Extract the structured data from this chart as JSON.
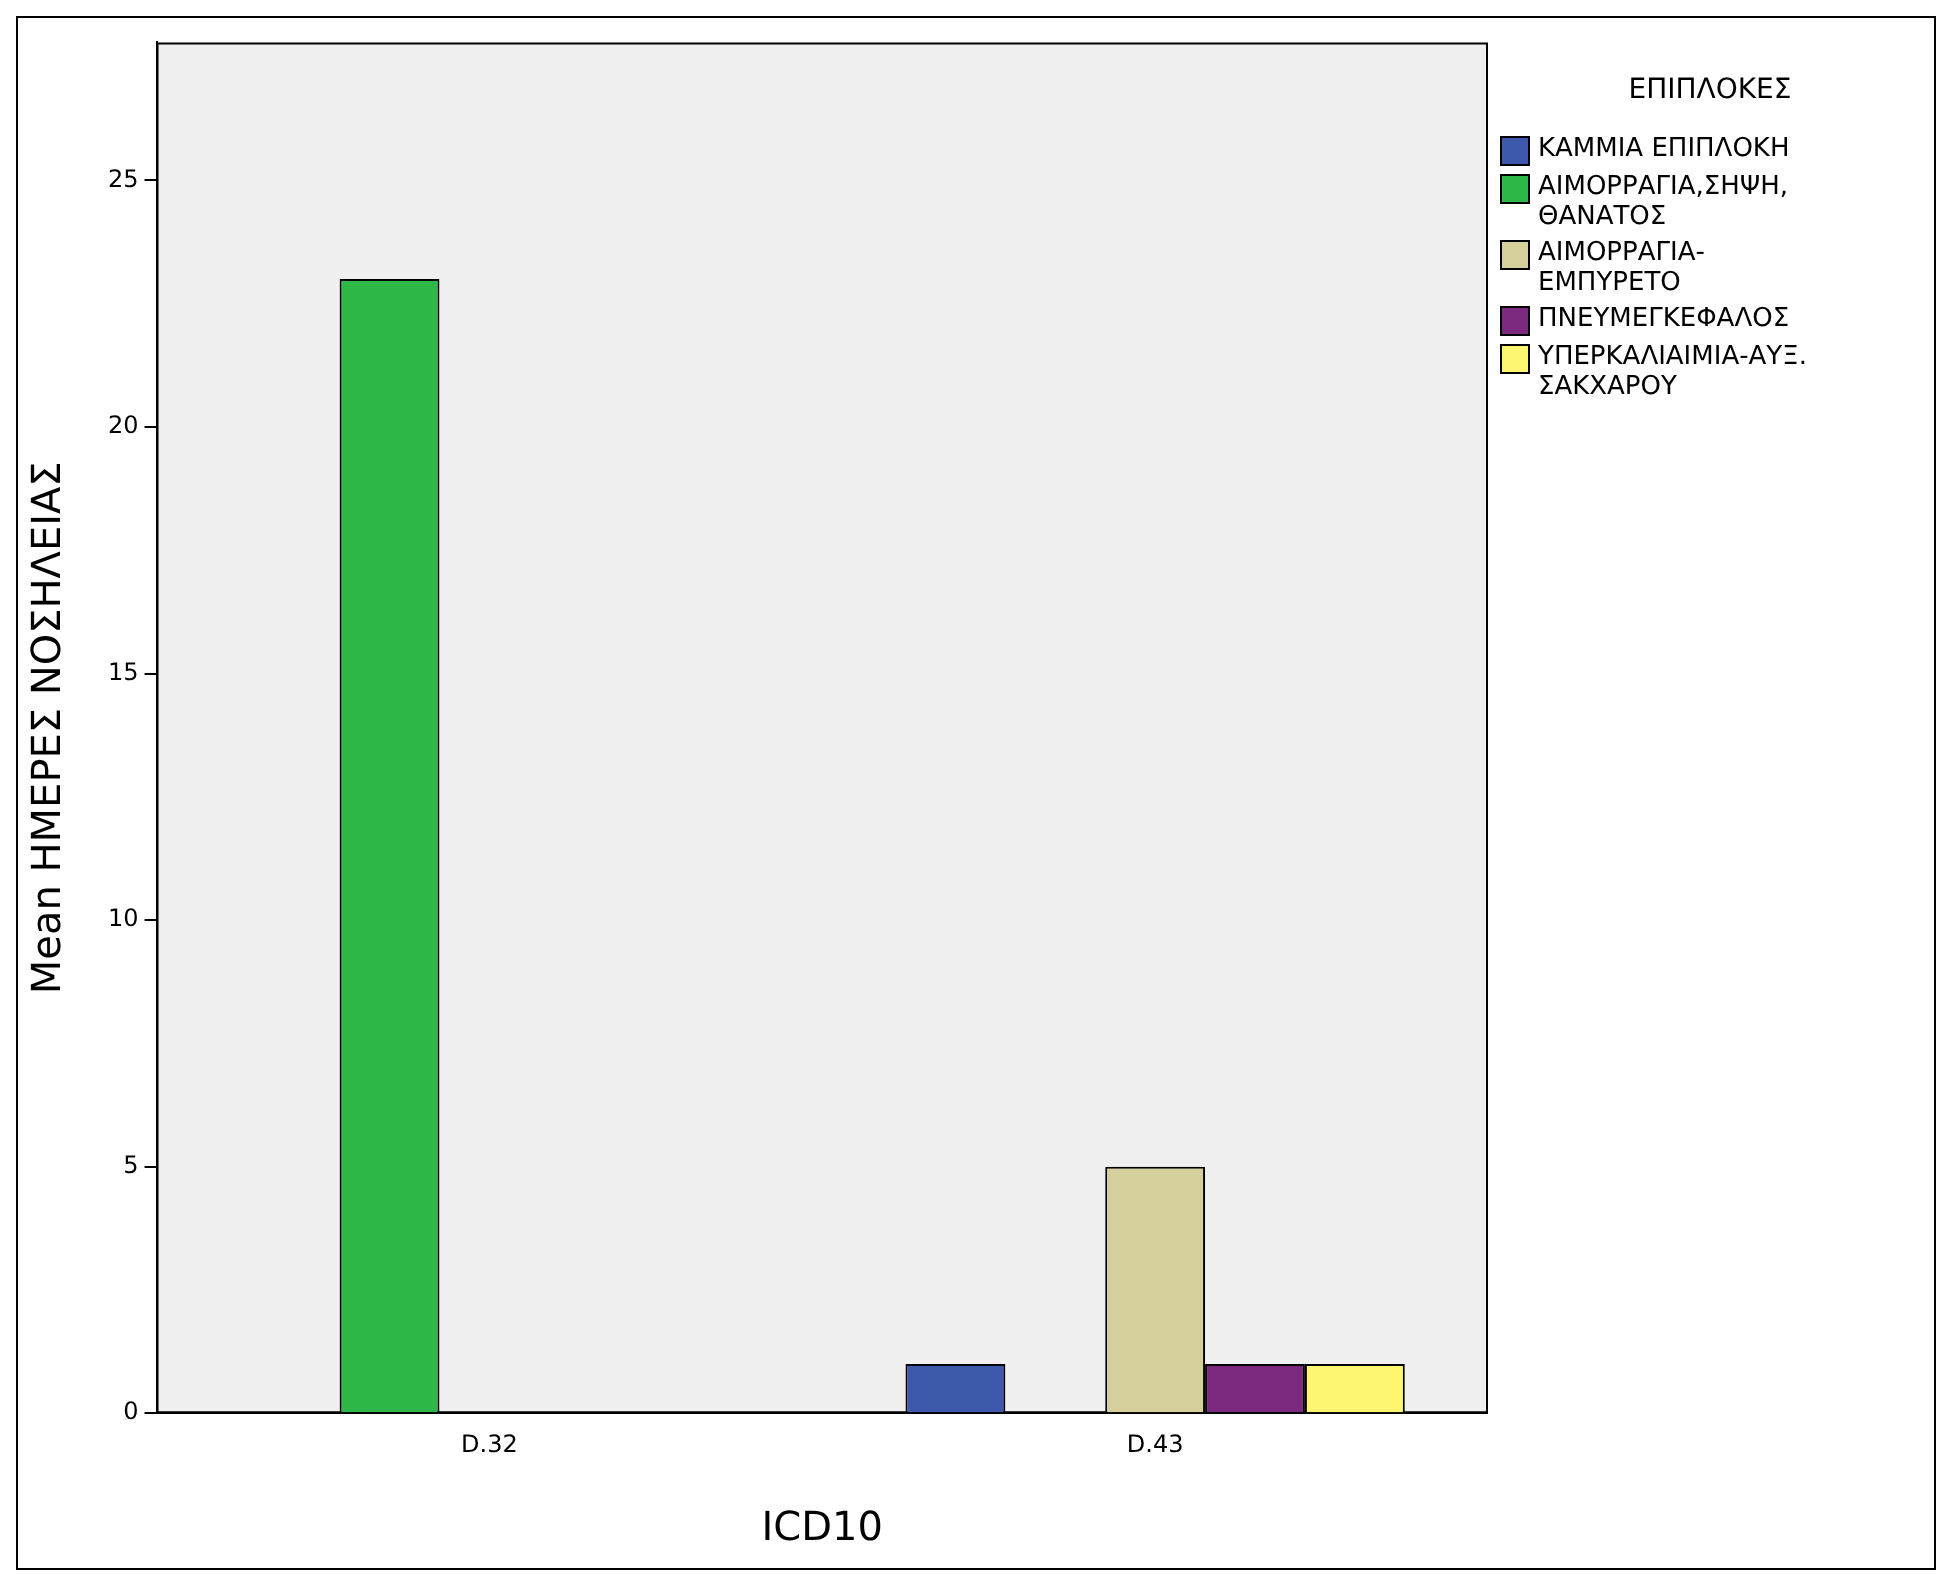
{
  "chart_data": {
    "type": "bar",
    "xlabel": "ICD10",
    "ylabel": "Mean ΗΜΕΡΕΣ ΝΟΣΗΛΕΙΑΣ",
    "legend_title": "ΕΠΙΠΛΟΚΕΣ",
    "categories": [
      "D.32",
      "D.43"
    ],
    "series": [
      {
        "name": "ΚΑΜΜΙΑ ΕΠΙΠΛΟΚΗ",
        "color": "#3e58ac",
        "values": [
          null,
          1
        ]
      },
      {
        "name": "ΑΙΜΟΡΡΑΓΙΑ,ΣΗΨΗ, ΘΑΝΑΤΟΣ",
        "color": "#2eb848",
        "values": [
          23,
          null
        ]
      },
      {
        "name": "ΑΙΜΟΡΡΑΓΙΑ-ΕΜΠΥΡΕΤΟ",
        "color": "#d4cf9b",
        "values": [
          null,
          5
        ]
      },
      {
        "name": "ΠΝΕΥΜΕΓΚΕΦΑΛΟΣ",
        "color": "#7b2a80",
        "values": [
          null,
          1
        ]
      },
      {
        "name": "ΥΠΕΡΚΑΛΙΑΙΜΙΑ-ΑΥΞ. ΣΑΚΧΑΡΟΥ",
        "color": "#fbf56f",
        "values": [
          null,
          1
        ]
      }
    ],
    "ylim": [
      0,
      27.8
    ],
    "yticks": [
      0,
      5,
      10,
      15,
      20,
      25
    ],
    "grid": false,
    "legend": "top right"
  }
}
